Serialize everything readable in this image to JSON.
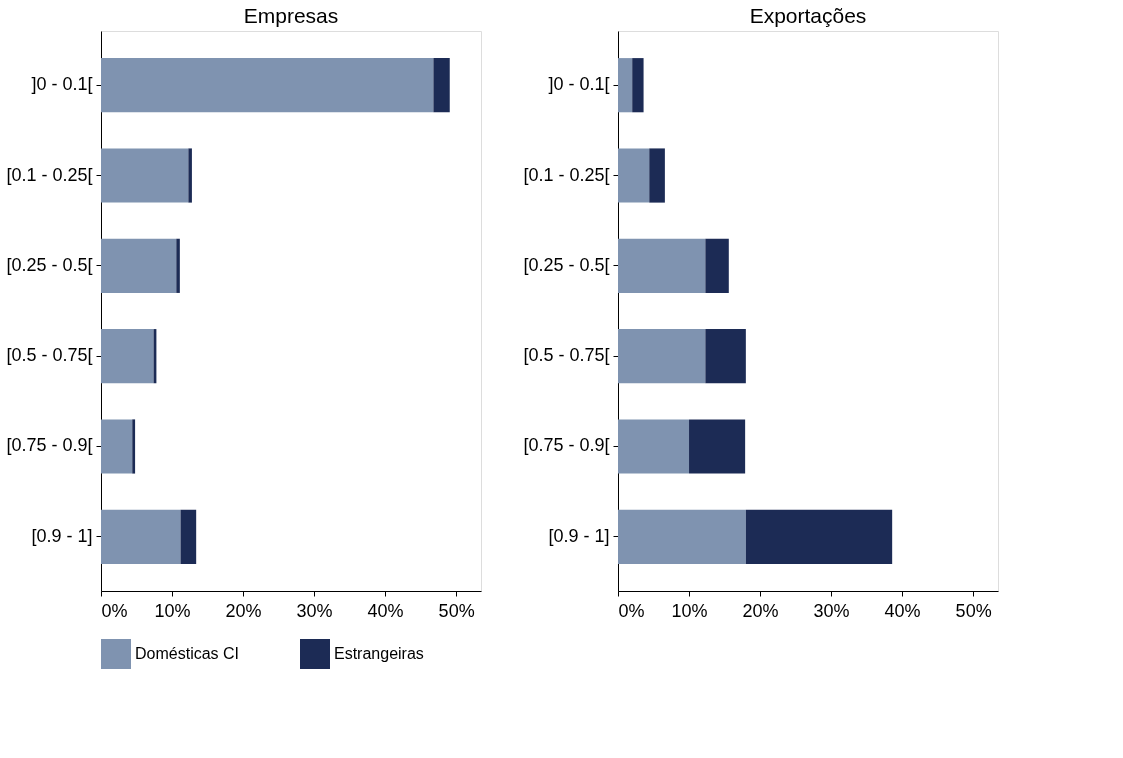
{
  "chart_data": [
    {
      "type": "bar",
      "orientation": "horizontal",
      "stacked": true,
      "title": "Empresas",
      "categories": [
        "]0 - 0.1[",
        "[0.1 - 0.25[",
        "[0.25 - 0.5[",
        "[0.5 - 0.75[",
        "[0.75 - 0.9[",
        "[0.9 - 1]"
      ],
      "series": [
        {
          "name": "Domésticas CI",
          "color": "#7f93b0",
          "values": [
            46.8,
            12.3,
            10.6,
            7.4,
            4.4,
            11.2
          ]
        },
        {
          "name": "Estrangeiras",
          "color": "#1c2b55",
          "values": [
            2.3,
            0.5,
            0.5,
            0.4,
            0.4,
            2.2
          ]
        }
      ],
      "xlim": [
        0,
        53.5
      ],
      "xticks": [
        {
          "value": 0,
          "label": "0%"
        },
        {
          "value": 10,
          "label": "10%"
        },
        {
          "value": 20,
          "label": "20%"
        },
        {
          "value": 30,
          "label": "30%"
        },
        {
          "value": 40,
          "label": "40%"
        },
        {
          "value": 50,
          "label": "50%"
        }
      ],
      "grid": false,
      "legend": "bottom"
    },
    {
      "type": "bar",
      "orientation": "horizontal",
      "stacked": true,
      "title": "Exportações",
      "categories": [
        "]0 - 0.1[",
        "[0.1 - 0.25[",
        "[0.25 - 0.5[",
        "[0.5 - 0.75[",
        "[0.75 - 0.9[",
        "[0.9 - 1]"
      ],
      "series": [
        {
          "name": "Domésticas CI",
          "color": "#7f93b0",
          "values": [
            2.0,
            4.4,
            12.3,
            12.3,
            10.0,
            18.0
          ]
        },
        {
          "name": "Estrangeiras",
          "color": "#1c2b55",
          "values": [
            1.6,
            2.2,
            3.3,
            5.7,
            7.9,
            20.6
          ]
        }
      ],
      "xlim": [
        0,
        53.5
      ],
      "xticks": [
        {
          "value": 0,
          "label": "0%"
        },
        {
          "value": 10,
          "label": "10%"
        },
        {
          "value": 20,
          "label": "20%"
        },
        {
          "value": 30,
          "label": "30%"
        },
        {
          "value": 40,
          "label": "40%"
        },
        {
          "value": 50,
          "label": "50%"
        }
      ],
      "grid": false,
      "legend": "bottom"
    }
  ]
}
